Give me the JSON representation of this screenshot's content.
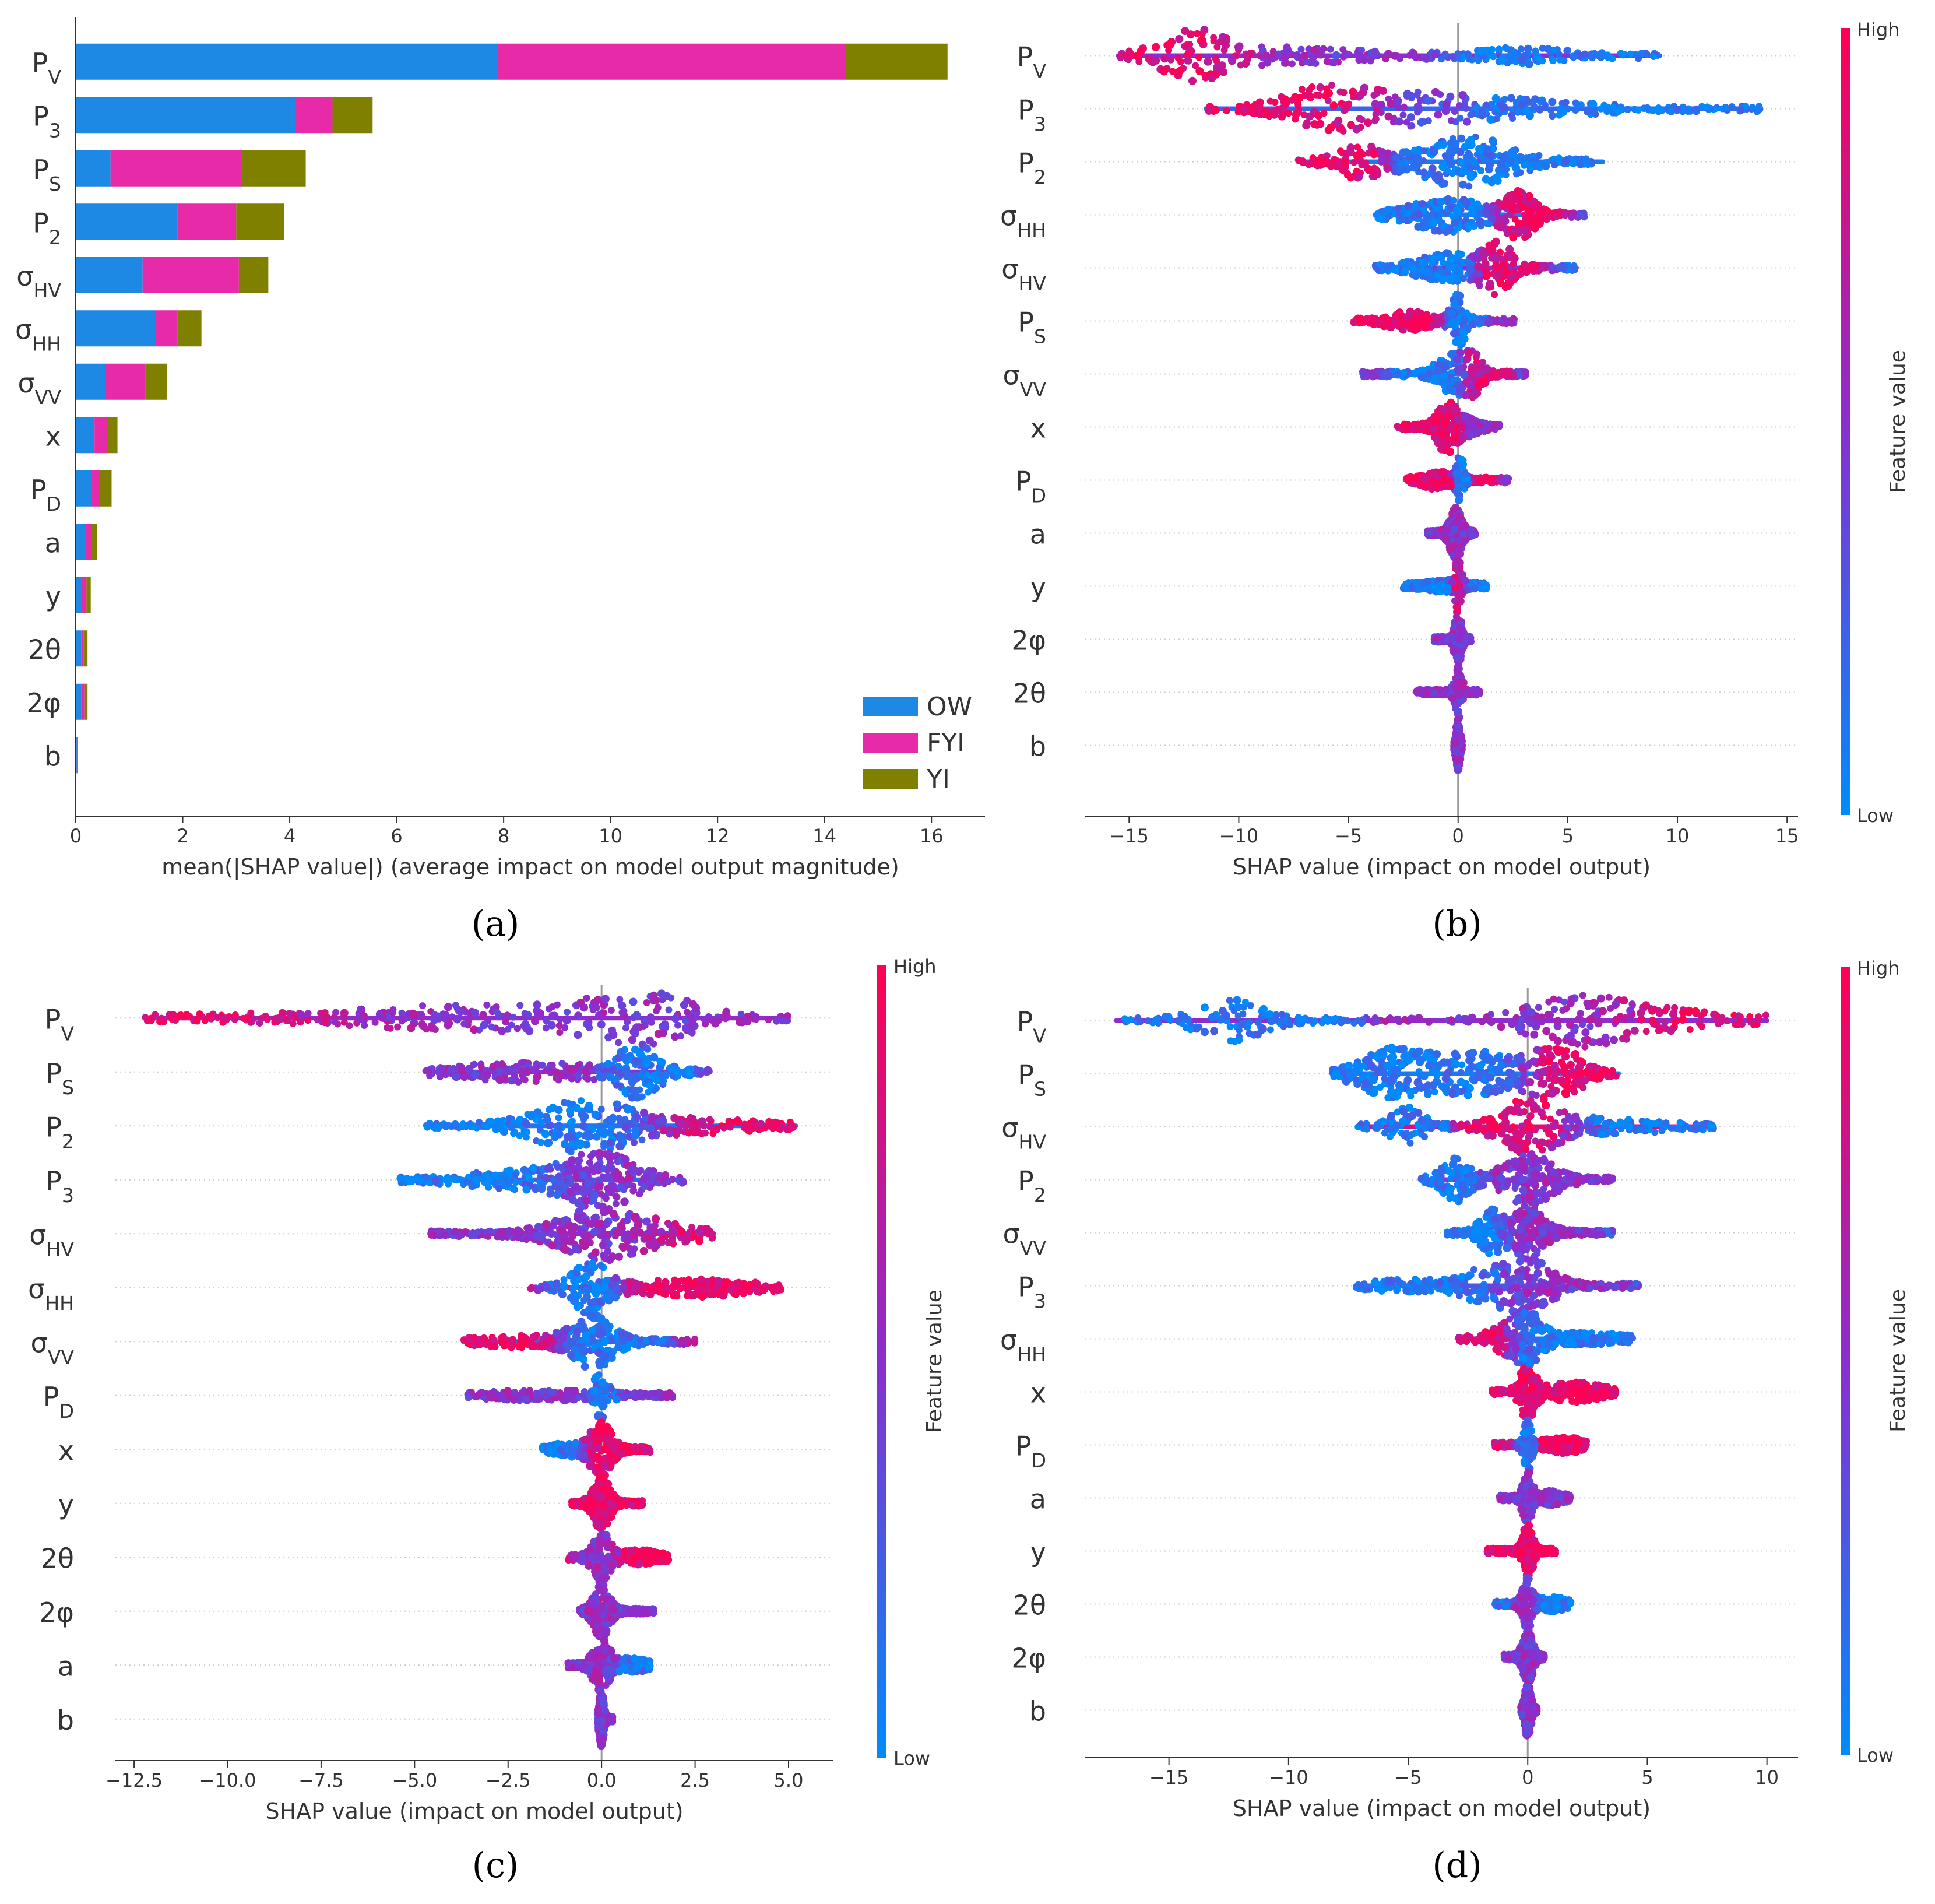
{
  "colors": {
    "ow": "#1e88e5",
    "fyi": "#e62aa8",
    "yi": "#808000",
    "high": "#ff0052",
    "mid": "#8a2ecf",
    "low": "#008bfb",
    "axis": "#333333",
    "grid": "#cccccc"
  },
  "chart_data": [
    {
      "panel": "a",
      "caption": "(a)",
      "type": "bar",
      "stacked": true,
      "orientation": "horizontal",
      "xlabel": "mean(|SHAP value|) (average impact on model output magnitude)",
      "xlim": [
        0,
        17
      ],
      "xticks": [
        0,
        2,
        4,
        6,
        8,
        10,
        12,
        14,
        16
      ],
      "features": [
        "P_V",
        "P_3",
        "P_S",
        "P_2",
        "σ_HV",
        "σ_HH",
        "σ_VV",
        "x",
        "P_D",
        "a",
        "y",
        "2θ",
        "2φ",
        "b"
      ],
      "series": [
        {
          "name": "OW",
          "color_key": "ow",
          "values": [
            7.9,
            4.1,
            0.65,
            1.9,
            1.25,
            1.5,
            0.55,
            0.35,
            0.3,
            0.18,
            0.12,
            0.1,
            0.1,
            0.02
          ]
        },
        {
          "name": "FYI",
          "color_key": "fyi",
          "values": [
            6.5,
            0.7,
            2.45,
            1.1,
            1.8,
            0.4,
            0.75,
            0.25,
            0.15,
            0.12,
            0.08,
            0.05,
            0.06,
            0.01
          ]
        },
        {
          "name": "YI",
          "color_key": "yi",
          "values": [
            1.9,
            0.75,
            1.2,
            0.9,
            0.55,
            0.45,
            0.4,
            0.18,
            0.22,
            0.1,
            0.08,
            0.07,
            0.06,
            0.01
          ]
        }
      ],
      "legend": [
        "OW",
        "FYI",
        "YI"
      ],
      "legend_position": "bottom-right"
    },
    {
      "panel": "b",
      "caption": "(b)",
      "type": "scatter",
      "subtype": "beeswarm",
      "xlabel": "SHAP value (impact on model output)",
      "xlim": [
        -17,
        15.5
      ],
      "xticks": [
        -15,
        -10,
        -5,
        0,
        5,
        10,
        15
      ],
      "xtick_labels": [
        "−15",
        "−10",
        "−5",
        "0",
        "5",
        "10",
        "15"
      ],
      "colorbar": {
        "label": "Feature value",
        "high": "High",
        "low": "Low"
      },
      "features": [
        {
          "name": "P_V",
          "min": -15.5,
          "max": 9.2,
          "peaks": [
            [
              -12,
              0.9,
              1.3,
              "high"
            ],
            [
              -8,
              0.25,
              3,
              "mid"
            ],
            [
              3,
              0.25,
              1.5,
              "low"
            ]
          ]
        },
        {
          "name": "P_3",
          "min": -11.5,
          "max": 13.8,
          "peaks": [
            [
              -6,
              0.9,
              1.6,
              "high"
            ],
            [
              -2,
              0.45,
              2,
              "mid"
            ],
            [
              2,
              0.3,
              3,
              "low"
            ]
          ]
        },
        {
          "name": "P_2",
          "min": -7.3,
          "max": 6.6,
          "peaks": [
            [
              -4.5,
              0.6,
              0.9,
              "high"
            ],
            [
              0.3,
              1,
              1.8,
              "low"
            ]
          ]
        },
        {
          "name": "σ_HH",
          "min": -3.8,
          "max": 5.8,
          "peaks": [
            [
              -0.5,
              0.6,
              1.4,
              "low"
            ],
            [
              2.8,
              0.9,
              0.6,
              "high"
            ]
          ]
        },
        {
          "name": "σ_HV",
          "min": -3.8,
          "max": 5.4,
          "peaks": [
            [
              -0.5,
              0.5,
              1.2,
              "low"
            ],
            [
              1.8,
              1,
              0.6,
              "high"
            ]
          ]
        },
        {
          "name": "P_S",
          "min": -4.8,
          "max": 2.6,
          "peaks": [
            [
              -2.2,
              0.3,
              0.8,
              "high"
            ],
            [
              0,
              1,
              0.3,
              "low"
            ]
          ]
        },
        {
          "name": "σ_VV",
          "min": -4.4,
          "max": 3.1,
          "peaks": [
            [
              -0.3,
              0.7,
              0.6,
              "low"
            ],
            [
              0.7,
              0.7,
              0.4,
              "high"
            ]
          ]
        },
        {
          "name": "x",
          "min": -2.8,
          "max": 1.9,
          "peaks": [
            [
              -0.5,
              1,
              0.4,
              "high"
            ],
            [
              0.5,
              0.3,
              0.4,
              "mid"
            ]
          ]
        },
        {
          "name": "P_D",
          "min": -2.4,
          "max": 2.3,
          "peaks": [
            [
              0.1,
              1,
              0.15,
              "low"
            ],
            [
              -1,
              0.25,
              0.6,
              "high"
            ]
          ]
        },
        {
          "name": "a",
          "min": -1.4,
          "max": 0.8,
          "peaks": [
            [
              -0.1,
              1,
              0.25,
              "mid"
            ]
          ]
        },
        {
          "name": "y",
          "min": -2.5,
          "max": 1.3,
          "peaks": [
            [
              0,
              1,
              0.12,
              "high"
            ],
            [
              -0.5,
              0.15,
              0.8,
              "low"
            ]
          ]
        },
        {
          "name": "2φ",
          "min": -1.1,
          "max": 0.6,
          "peaks": [
            [
              0,
              1,
              0.15,
              "mid"
            ]
          ]
        },
        {
          "name": "2θ",
          "min": -1.9,
          "max": 1.0,
          "peaks": [
            [
              0,
              1,
              0.15,
              "mid"
            ]
          ]
        },
        {
          "name": "b",
          "min": -0.2,
          "max": 0.2,
          "peaks": [
            [
              0,
              1,
              0.08,
              "mid"
            ]
          ]
        }
      ]
    },
    {
      "panel": "c",
      "caption": "(c)",
      "type": "scatter",
      "subtype": "beeswarm",
      "xlabel": "SHAP value (impact on model output)",
      "xlim": [
        -13,
        6.2
      ],
      "xticks": [
        -12.5,
        -10,
        -7.5,
        -5,
        -2.5,
        0,
        2.5,
        5
      ],
      "xtick_labels": [
        "−12.5",
        "−10.0",
        "−7.5",
        "−5.0",
        "−2.5",
        "0.0",
        "2.5",
        "5.0"
      ],
      "colorbar": {
        "label": "Feature value",
        "high": "High",
        "low": "Low"
      },
      "features": [
        {
          "name": "P_V",
          "min": -12.2,
          "max": 5.0,
          "peaks": [
            [
              1,
              1,
              1.2,
              "mid"
            ],
            [
              -3,
              0.45,
              2.5,
              "mid"
            ],
            [
              -8,
              0.08,
              3,
              "high"
            ]
          ]
        },
        {
          "name": "P_S",
          "min": -4.7,
          "max": 2.9,
          "peaks": [
            [
              1,
              1,
              0.5,
              "low"
            ],
            [
              -2,
              0.3,
              1.5,
              "mid"
            ]
          ]
        },
        {
          "name": "P_2",
          "min": -4.7,
          "max": 5.2,
          "peaks": [
            [
              -0.5,
              1,
              1.1,
              "low"
            ],
            [
              2.5,
              0.2,
              1.5,
              "high"
            ]
          ]
        },
        {
          "name": "P_3",
          "min": -5.4,
          "max": 2.2,
          "peaks": [
            [
              0,
              1,
              0.8,
              "mid"
            ],
            [
              -2,
              0.3,
              1.3,
              "low"
            ]
          ]
        },
        {
          "name": "σ_HV",
          "min": -4.6,
          "max": 3.0,
          "peaks": [
            [
              0,
              1,
              1,
              "mid"
            ],
            [
              2,
              0.2,
              0.8,
              "high"
            ]
          ]
        },
        {
          "name": "σ_HH",
          "min": -1.9,
          "max": 4.8,
          "peaks": [
            [
              -0.3,
              1,
              0.4,
              "low"
            ],
            [
              2.5,
              0.25,
              1.3,
              "high"
            ]
          ]
        },
        {
          "name": "σ_VV",
          "min": -3.7,
          "max": 2.5,
          "peaks": [
            [
              -0.2,
              1,
              0.5,
              "low"
            ],
            [
              -2,
              0.15,
              1,
              "high"
            ]
          ]
        },
        {
          "name": "P_D",
          "min": -3.6,
          "max": 1.9,
          "peaks": [
            [
              0,
              1,
              0.15,
              "low"
            ],
            [
              -1.5,
              0.12,
              1,
              "mid"
            ]
          ]
        },
        {
          "name": "x",
          "min": -1.6,
          "max": 1.3,
          "peaks": [
            [
              0,
              1,
              0.25,
              "high"
            ],
            [
              -0.8,
              0.2,
              0.4,
              "low"
            ]
          ]
        },
        {
          "name": "y",
          "min": -0.8,
          "max": 1.1,
          "peaks": [
            [
              0,
              1,
              0.2,
              "high"
            ]
          ]
        },
        {
          "name": "2θ",
          "min": -0.9,
          "max": 1.8,
          "peaks": [
            [
              0,
              1,
              0.2,
              "mid"
            ],
            [
              1,
              0.2,
              0.5,
              "high"
            ]
          ]
        },
        {
          "name": "2φ",
          "min": -0.6,
          "max": 1.4,
          "peaks": [
            [
              0,
              1,
              0.2,
              "mid"
            ]
          ]
        },
        {
          "name": "a",
          "min": -0.9,
          "max": 1.3,
          "peaks": [
            [
              0,
              1,
              0.2,
              "mid"
            ],
            [
              0.8,
              0.2,
              0.3,
              "low"
            ]
          ]
        },
        {
          "name": "b",
          "min": -0.1,
          "max": 0.3,
          "peaks": [
            [
              0,
              1,
              0.06,
              "mid"
            ]
          ]
        }
      ]
    },
    {
      "panel": "d",
      "caption": "(d)",
      "type": "scatter",
      "subtype": "beeswarm",
      "xlabel": "SHAP value (impact on model output)",
      "xlim": [
        -18.5,
        11.3
      ],
      "xticks": [
        -15,
        -10,
        -5,
        0,
        5,
        10
      ],
      "xtick_labels": [
        "−15",
        "−10",
        "−5",
        "0",
        "5",
        "10"
      ],
      "colorbar": {
        "label": "Feature value",
        "high": "High",
        "low": "Low"
      },
      "features": [
        {
          "name": "P_V",
          "min": -17.2,
          "max": 10.0,
          "peaks": [
            [
              -12.5,
              0.8,
              1.2,
              "low"
            ],
            [
              2,
              0.9,
              1.8,
              "mid"
            ],
            [
              6,
              0.35,
              2.5,
              "high"
            ]
          ]
        },
        {
          "name": "P_S",
          "min": -8.2,
          "max": 3.8,
          "peaks": [
            [
              -5.5,
              1,
              1.2,
              "low"
            ],
            [
              -2,
              0.8,
              1.5,
              "low"
            ],
            [
              1.2,
              1,
              0.9,
              "high"
            ]
          ]
        },
        {
          "name": "σ_HV",
          "min": -7.1,
          "max": 7.8,
          "peaks": [
            [
              -5,
              0.7,
              0.6,
              "low"
            ],
            [
              0,
              1,
              1,
              "high"
            ],
            [
              3,
              0.25,
              2,
              "low"
            ]
          ]
        },
        {
          "name": "P_2",
          "min": -4.5,
          "max": 3.6,
          "peaks": [
            [
              -3,
              0.8,
              0.5,
              "low"
            ],
            [
              0,
              1,
              0.9,
              "mid"
            ]
          ]
        },
        {
          "name": "σ_VV",
          "min": -3.4,
          "max": 3.6,
          "peaks": [
            [
              -1.5,
              0.9,
              0.4,
              "low"
            ],
            [
              0,
              1,
              0.6,
              "mid"
            ]
          ]
        },
        {
          "name": "P_3",
          "min": -7.2,
          "max": 4.7,
          "peaks": [
            [
              0,
              1,
              0.9,
              "mid"
            ],
            [
              -2,
              0.5,
              1,
              "low"
            ],
            [
              -5,
              0.15,
              1.5,
              "low"
            ]
          ]
        },
        {
          "name": "σ_HH",
          "min": -2.9,
          "max": 4.4,
          "peaks": [
            [
              0,
              1,
              0.5,
              "low"
            ],
            [
              -1,
              0.4,
              0.6,
              "high"
            ],
            [
              2,
              0.15,
              1.5,
              "low"
            ]
          ]
        },
        {
          "name": "x",
          "min": -1.5,
          "max": 3.7,
          "peaks": [
            [
              0,
              1,
              0.3,
              "high"
            ],
            [
              2,
              0.3,
              1,
              "high"
            ]
          ]
        },
        {
          "name": "P_D",
          "min": -1.4,
          "max": 2.5,
          "peaks": [
            [
              0,
              1,
              0.15,
              "low"
            ],
            [
              1.5,
              0.25,
              0.6,
              "high"
            ]
          ]
        },
        {
          "name": "a",
          "min": -1.2,
          "max": 1.8,
          "peaks": [
            [
              0,
              1,
              0.2,
              "mid"
            ],
            [
              1,
              0.2,
              0.4,
              "mid"
            ]
          ]
        },
        {
          "name": "y",
          "min": -1.7,
          "max": 1.2,
          "peaks": [
            [
              0,
              1,
              0.2,
              "high"
            ]
          ]
        },
        {
          "name": "2θ",
          "min": -1.4,
          "max": 1.8,
          "peaks": [
            [
              0,
              1,
              0.2,
              "mid"
            ],
            [
              1,
              0.2,
              0.5,
              "low"
            ]
          ]
        },
        {
          "name": "2φ",
          "min": -1.0,
          "max": 0.7,
          "peaks": [
            [
              0,
              1,
              0.2,
              "mid"
            ]
          ]
        },
        {
          "name": "b",
          "min": -0.3,
          "max": 0.4,
          "peaks": [
            [
              0,
              1,
              0.12,
              "mid"
            ]
          ]
        }
      ]
    }
  ]
}
